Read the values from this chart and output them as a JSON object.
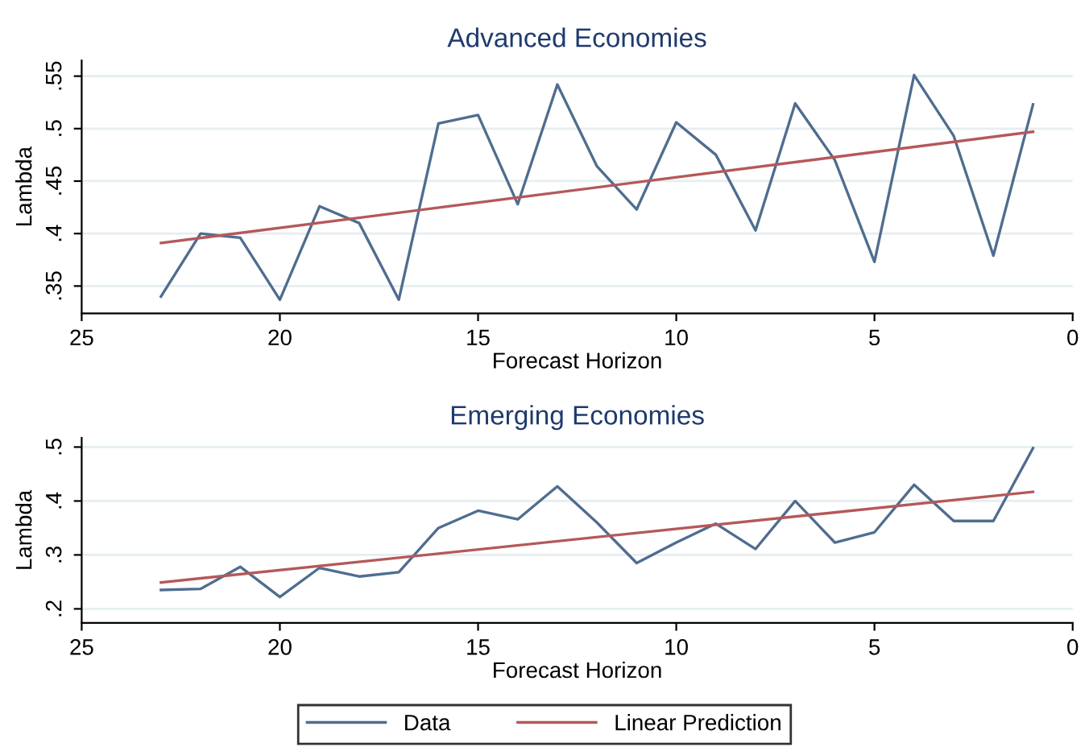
{
  "chart_data": [
    {
      "type": "line",
      "title": "Advanced Economies",
      "xlabel": "Forecast Horizon",
      "ylabel": "Lambda",
      "xlim": [
        25,
        0
      ],
      "xticks": [
        25,
        20,
        15,
        10,
        5,
        0
      ],
      "ylim": [
        0.324,
        0.565
      ],
      "yticks": [
        {
          "value": 0.35,
          "label": ".35"
        },
        {
          "value": 0.4,
          "label": ".4"
        },
        {
          "value": 0.45,
          "label": ".45"
        },
        {
          "value": 0.5,
          "label": ".5"
        },
        {
          "value": 0.55,
          "label": ".55"
        }
      ],
      "grid": "y",
      "series": [
        {
          "color": "#4f6d8f",
          "x": [
            23,
            22,
            21,
            20,
            19,
            18,
            17,
            16,
            15,
            14,
            13,
            12,
            11,
            10,
            9,
            8,
            7,
            6,
            5,
            4,
            3,
            2,
            1
          ],
          "values": [
            0.34,
            0.4,
            0.396,
            0.337,
            0.426,
            0.41,
            0.337,
            0.505,
            0.513,
            0.428,
            0.542,
            0.464,
            0.423,
            0.506,
            0.475,
            0.403,
            0.524,
            0.47,
            0.373,
            0.551,
            0.493,
            0.379,
            0.523
          ]
        },
        {
          "color": "#b5585a",
          "x": [
            23,
            1
          ],
          "values": [
            0.391,
            0.497
          ]
        }
      ]
    },
    {
      "type": "line",
      "title": "Emerging Economies",
      "xlabel": "Forecast Horizon",
      "ylabel": "Lambda",
      "xlim": [
        25,
        0
      ],
      "xticks": [
        25,
        20,
        15,
        10,
        5,
        0
      ],
      "ylim": [
        0.174,
        0.517
      ],
      "yticks": [
        {
          "value": 0.2,
          "label": ".2"
        },
        {
          "value": 0.3,
          "label": ".3"
        },
        {
          "value": 0.4,
          "label": ".4"
        },
        {
          "value": 0.5,
          "label": ".5"
        }
      ],
      "grid": "y",
      "legend": "bottom",
      "series": [
        {
          "name": "Data",
          "color": "#4f6d8f",
          "x": [
            23,
            22,
            21,
            20,
            19,
            18,
            17,
            16,
            15,
            14,
            13,
            12,
            11,
            10,
            9,
            8,
            7,
            6,
            5,
            4,
            3,
            2,
            1
          ],
          "values": [
            0.235,
            0.237,
            0.278,
            0.222,
            0.276,
            0.26,
            0.268,
            0.35,
            0.382,
            0.366,
            0.427,
            0.36,
            0.285,
            0.323,
            0.358,
            0.311,
            0.4,
            0.323,
            0.342,
            0.43,
            0.363,
            0.363,
            0.498
          ]
        },
        {
          "name": "Linear Prediction",
          "color": "#b5585a",
          "x": [
            23,
            1
          ],
          "values": [
            0.249,
            0.417
          ]
        }
      ]
    }
  ]
}
